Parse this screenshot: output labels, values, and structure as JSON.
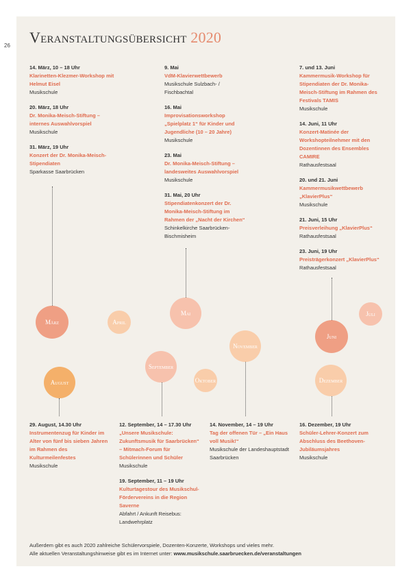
{
  "page_number": "26",
  "title": {
    "main": "Veranstaltungsübersicht",
    "year": "2020"
  },
  "columns": {
    "march": [
      {
        "date": "14. März, 10 – 18 Uhr",
        "name": "Klarinetten-Klezmer-Workshop mit Helmut Eisel",
        "place": "Musikschule"
      },
      {
        "date": "20. März, 18 Uhr",
        "name": "Dr. Monika-Meisch-Stiftung – internes Auswahlvorspiel",
        "place": "Musikschule"
      },
      {
        "date": "31. März, 19 Uhr",
        "name": "Konzert der Dr. Monika-Meisch-Stipendiaten",
        "place": "Sparkasse Saarbrücken"
      }
    ],
    "may": [
      {
        "date": "9. Mai",
        "name": "VdM-Klavierwettbewerb",
        "place": "Musikschule Sulzbach- / Fischbachtal"
      },
      {
        "date": "16. Mai",
        "name": "Improvisationsworkshop „Spielplatz 1“ für Kinder und Jugendliche (10 – 20 Jahre)",
        "place": "Musikschule"
      },
      {
        "date": "23. Mai",
        "name": "Dr. Monika-Meisch-Stiftung – landesweites Auswahlvorspiel",
        "place": "Musikschule"
      },
      {
        "date": "31. Mai, 20 Uhr",
        "name": "Stipendiatenkonzert der Dr. Monika-Meisch-Stiftung im Rahmen der „Nacht der Kirchen“",
        "place": "Schinkelkirche Saarbrücken-Bischmisheim"
      }
    ],
    "june": [
      {
        "date": "7. und 13. Juni",
        "name": "Kammermusik-Workshop für Stipendiaten der Dr. Monika-Meisch-Stiftung im Rahmen des Festivals TAMIS",
        "place": "Musikschule"
      },
      {
        "date": "14. Juni, 11 Uhr",
        "name": "Konzert-Matinée der Workshopteilnehmer mit den Dozentinnen des Ensembles CAMIRE",
        "place": "Rathausfestsaal"
      },
      {
        "date": "20. und 21. Juni",
        "name": "Kammermusikwettbewerb „KlavierPlus“",
        "place": "Musikschule"
      },
      {
        "date": "21. Juni, 15 Uhr",
        "name": "Preisverleihung „KlavierPlus“",
        "place": "Rathausfestsaal"
      },
      {
        "date": "23. Juni, 19 Uhr",
        "name": "Preisträgerkonzert „KlavierPlus“",
        "place": "Rathausfestsaal"
      }
    ],
    "august": [
      {
        "date": "29. August, 14.30 Uhr",
        "name": "Instrumentenzug für Kinder im Alter von fünf bis sieben Jahren im Rahmen des Kulturmeilenfestes",
        "place": "Musikschule"
      }
    ],
    "september": [
      {
        "date": "12. September, 14 – 17.30 Uhr",
        "name": "„Unsere Musikschule: Zukunftsmusik für Saarbrücken“ – Mitmach-Forum für Schülerinnen und Schüler",
        "place": "Musikschule"
      },
      {
        "date": "19. September, 11 – 19 Uhr",
        "name": "Kulturtagestour des Musikschul-Fördervereins in die Region Saverne",
        "place": "Abfahrt / Ankunft Reisebus: Landwehrplatz"
      }
    ],
    "november": [
      {
        "date": "14. November, 14 – 19 Uhr",
        "name": "Tag der offenen Tür – „Ein Haus voll Musik!“",
        "place": "Musikschule der Landeshauptstadt Saarbrücken"
      }
    ],
    "december": [
      {
        "date": "16. Dezember, 19 Uhr",
        "name": "Schüler-Lehrer-Konzert zum Abschluss des Beethoven-Jubiläumsjahres",
        "place": "Musikschule"
      }
    ]
  },
  "months": {
    "maerz": "März",
    "april": "April",
    "mai": "Mai",
    "juni": "Juni",
    "juli": "Juli",
    "august": "August",
    "september": "September",
    "oktober": "Oktober",
    "november": "November",
    "dezember": "Dezember"
  },
  "colors": {
    "salmon": "#ef9f84",
    "light_peach": "#f9cdaa",
    "orange": "#f4b06a",
    "accent_red": "#e06b4e"
  },
  "footer": {
    "line1": "Außerdem gibt es auch 2020 zahlreiche Schülervorspiele, Dozenten-Konzerte, Workshops und vieles mehr.",
    "line2_prefix": "Alle aktuellen Veranstaltungshinweise gibt es im Internet unter: ",
    "line2_url": "www.musikschule.saarbruecken.de/veranstaltungen"
  }
}
